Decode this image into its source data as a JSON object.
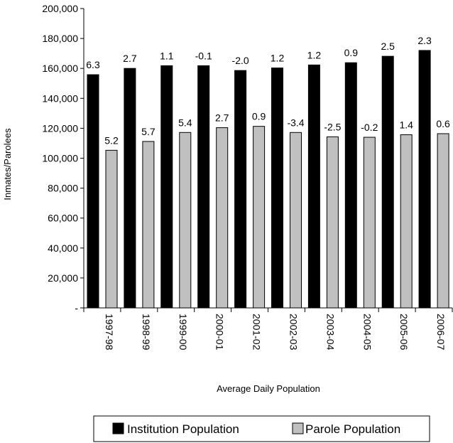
{
  "chart_data": {
    "type": "bar",
    "categories": [
      "1997-98",
      "1998-99",
      "1999-00",
      "2000-01",
      "2001-02",
      "2002-03",
      "2003-04",
      "2004-05",
      "2005-06",
      "2006-07"
    ],
    "series": [
      {
        "name": "Institution Population",
        "color": "#000000",
        "values": [
          155800,
          160000,
          161800,
          161800,
          158600,
          160300,
          162300,
          163800,
          168100,
          172000
        ],
        "labels": [
          "6.3",
          "2.7",
          "1.1",
          "-0.1",
          "-2.0",
          "1.2",
          "1.2",
          "0.9",
          "2.5",
          "2.3"
        ]
      },
      {
        "name": "Parole Population",
        "color": "#c0c0c0",
        "values": [
          105300,
          111200,
          117200,
          120400,
          121300,
          117200,
          114300,
          114000,
          115700,
          116400
        ],
        "labels": [
          "5.2",
          "5.7",
          "5.4",
          "2.7",
          "0.9",
          "-3.4",
          "-2.5",
          "-0.2",
          "1.4",
          "0.6"
        ]
      }
    ],
    "ylabel": "Inmates/Parolees",
    "xlabel": "Average Daily Population",
    "ylim": [
      0,
      200000
    ],
    "ytick_labels": [
      "-",
      "20,000",
      "40,000",
      "60,000",
      "80,000",
      "100,000",
      "120,000",
      "140,000",
      "160,000",
      "180,000",
      "200,000"
    ],
    "grid": false,
    "legend_position": "bottom"
  }
}
